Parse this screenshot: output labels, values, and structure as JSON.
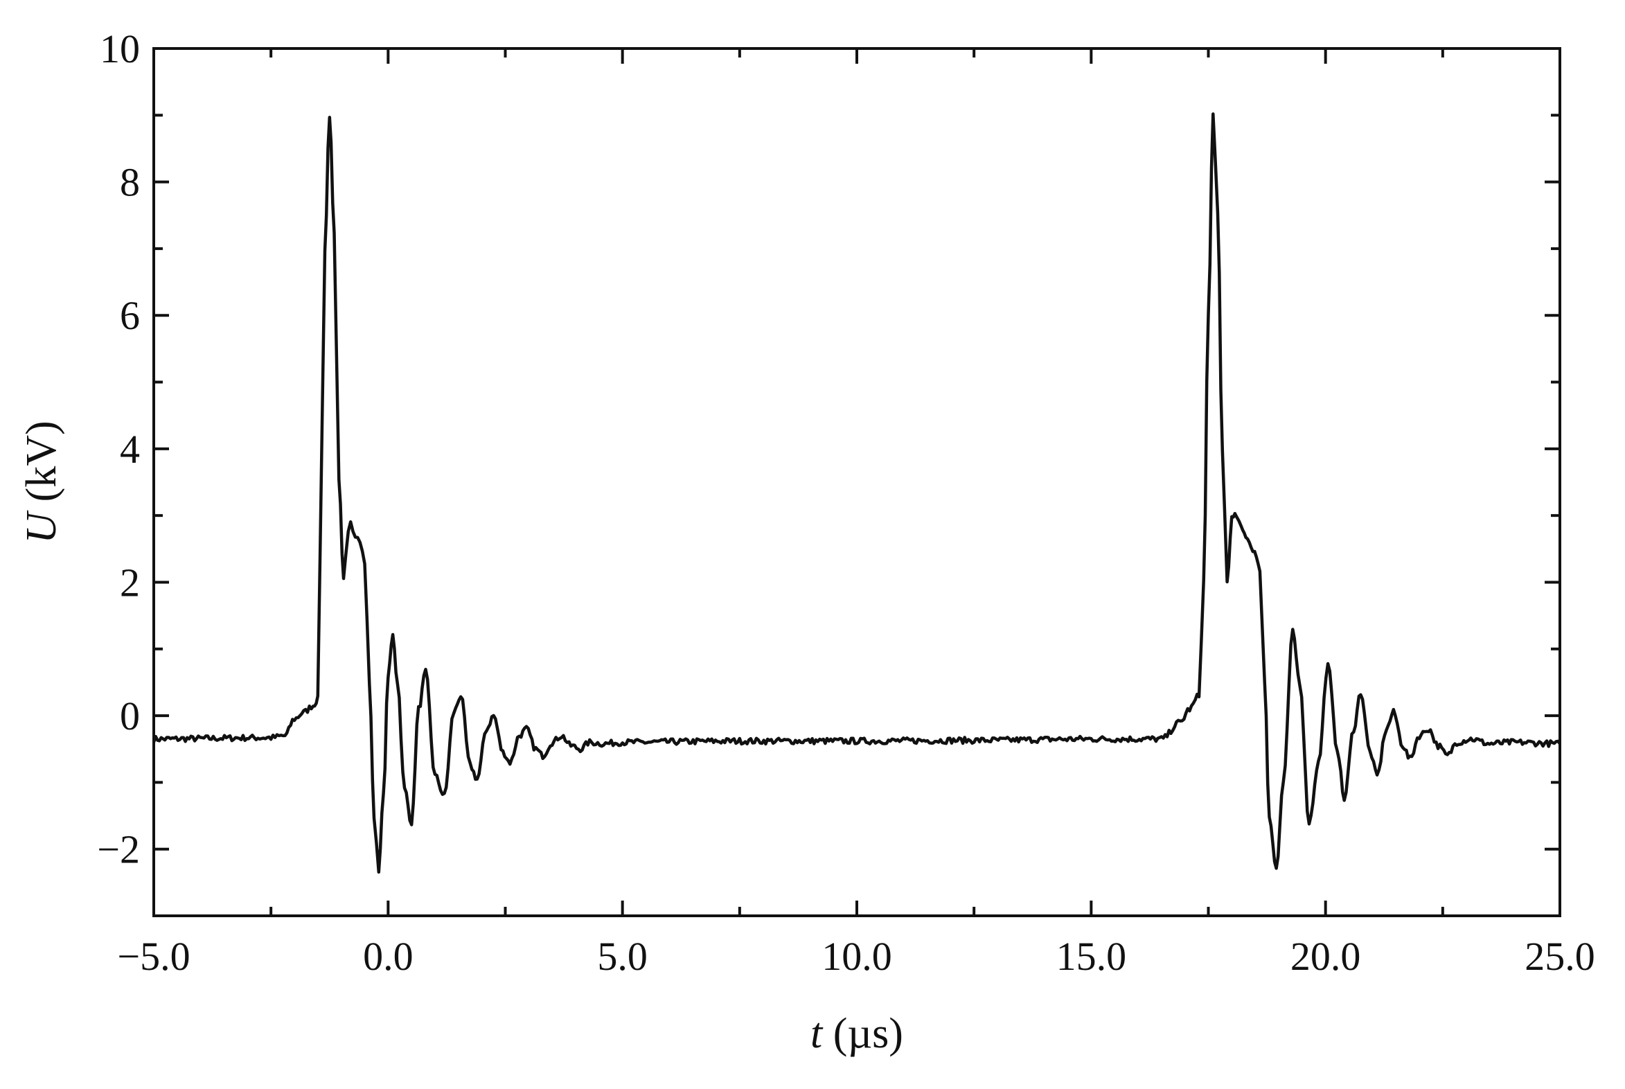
{
  "chart_data": {
    "type": "line",
    "title": "",
    "xlabel": {
      "var": "t",
      "unit": " (µs)"
    },
    "ylabel": {
      "var": "U",
      "unit": " (kV)"
    },
    "xlim": [
      -5.0,
      25.0
    ],
    "ylim": [
      -3.0,
      10.0
    ],
    "x_ticks": [
      -5.0,
      0.0,
      5.0,
      10.0,
      15.0,
      20.0,
      25.0
    ],
    "x_tick_labels": [
      "−5.0",
      "0.0",
      "5.0",
      "10.0",
      "15.0",
      "20.0",
      "25.0"
    ],
    "x_minor_step": 2.5,
    "y_ticks": [
      -2,
      0,
      2,
      4,
      6,
      8,
      10
    ],
    "y_tick_labels": [
      "−2",
      "0",
      "2",
      "4",
      "6",
      "8",
      "10"
    ],
    "y_minor_step": 1,
    "grid": false,
    "legend": "none",
    "line_color": "#111111",
    "series": [
      {
        "x": [
          -5.0,
          -2.5,
          -2.2,
          -2.0,
          -1.8,
          -1.6,
          -1.5,
          -1.45,
          -1.35,
          -1.25,
          -1.15,
          -1.05,
          -0.95,
          -0.85,
          -0.8,
          -0.75,
          -0.7,
          -0.6,
          -0.5,
          -0.4,
          -0.3,
          -0.2,
          -0.1,
          0.0,
          0.1,
          0.2,
          0.35,
          0.5,
          0.65,
          0.8,
          1.0,
          1.2,
          1.4,
          1.55,
          1.75,
          1.9,
          2.1,
          2.25,
          2.45,
          2.6,
          2.8,
          2.95,
          3.15,
          3.3,
          3.5,
          3.7,
          3.9,
          4.1,
          4.3,
          4.6,
          5.0,
          7.5,
          10.0,
          12.5,
          15.0,
          16.5,
          16.9,
          17.1,
          17.3,
          17.4,
          17.5,
          17.6,
          17.7,
          17.8,
          17.9,
          18.0,
          18.1,
          18.2,
          18.3,
          18.45,
          18.6,
          18.7,
          18.8,
          18.95,
          19.1,
          19.3,
          19.45,
          19.65,
          19.85,
          20.05,
          20.25,
          20.4,
          20.6,
          20.75,
          20.95,
          21.1,
          21.3,
          21.45,
          21.65,
          21.8,
          22.0,
          22.2,
          22.4,
          22.6,
          22.8,
          23.1,
          23.5,
          24.0,
          25.0
        ],
        "y": [
          -0.35,
          -0.33,
          -0.3,
          -0.05,
          0.05,
          0.15,
          0.25,
          2.5,
          7.0,
          9.0,
          7.2,
          3.5,
          2.1,
          2.8,
          2.95,
          2.75,
          2.7,
          2.6,
          2.3,
          0.5,
          -1.5,
          -2.3,
          -1.2,
          0.6,
          1.2,
          0.5,
          -1.1,
          -1.6,
          0.1,
          0.65,
          -0.9,
          -1.2,
          0.05,
          0.3,
          -0.75,
          -0.95,
          -0.2,
          0.0,
          -0.55,
          -0.7,
          -0.3,
          -0.2,
          -0.5,
          -0.6,
          -0.4,
          -0.3,
          -0.45,
          -0.5,
          -0.4,
          -0.42,
          -0.4,
          -0.38,
          -0.38,
          -0.37,
          -0.35,
          -0.35,
          -0.1,
          0.1,
          0.3,
          2.0,
          6.0,
          9.0,
          7.5,
          4.0,
          2.0,
          2.95,
          3.0,
          2.8,
          2.7,
          2.5,
          2.2,
          0.5,
          -1.5,
          -2.3,
          -1.0,
          1.25,
          0.5,
          -1.6,
          -0.7,
          0.75,
          -0.5,
          -1.25,
          -0.2,
          0.35,
          -0.55,
          -0.9,
          -0.2,
          0.05,
          -0.45,
          -0.65,
          -0.3,
          -0.2,
          -0.45,
          -0.6,
          -0.4,
          -0.35,
          -0.42,
          -0.4,
          -0.42
        ]
      }
    ]
  }
}
